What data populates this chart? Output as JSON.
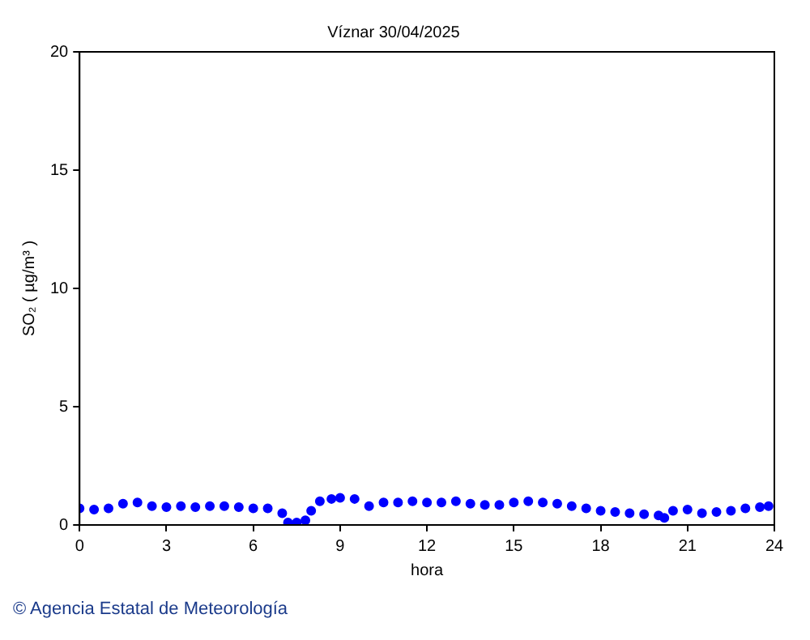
{
  "chart_data": {
    "type": "scatter",
    "title": "Víznar 30/04/2025",
    "xlabel": "hora",
    "ylabel": "SO₂ ( µg/m³ )",
    "x": [
      0,
      0.5,
      1,
      1.5,
      2,
      2.5,
      3,
      3.5,
      4,
      4.5,
      5,
      5.5,
      6,
      6.5,
      7,
      7.2,
      7.5,
      7.8,
      8,
      8.3,
      8.7,
      9,
      9.5,
      10,
      10.5,
      11,
      11.5,
      12,
      12.5,
      13,
      13.5,
      14,
      14.5,
      15,
      15.5,
      16,
      16.5,
      17,
      17.5,
      18,
      18.5,
      19,
      19.5,
      20,
      20.2,
      20.5,
      21,
      21.5,
      22,
      22.5,
      23,
      23.5,
      23.8
    ],
    "series": [
      {
        "color": "#0000ff",
        "values": [
          0.7,
          0.65,
          0.7,
          0.9,
          0.95,
          0.8,
          0.75,
          0.8,
          0.75,
          0.8,
          0.8,
          0.75,
          0.7,
          0.7,
          0.5,
          0.1,
          0.1,
          0.2,
          0.6,
          1.0,
          1.1,
          1.15,
          1.1,
          0.8,
          0.95,
          0.95,
          1.0,
          0.95,
          0.95,
          1.0,
          0.9,
          0.85,
          0.85,
          0.95,
          1.0,
          0.95,
          0.9,
          0.8,
          0.7,
          0.6,
          0.55,
          0.5,
          0.45,
          0.4,
          0.3,
          0.6,
          0.65,
          0.5,
          0.55,
          0.6,
          0.7,
          0.75,
          0.8
        ]
      }
    ],
    "xlim": [
      0,
      24
    ],
    "xticks": [
      0,
      3,
      6,
      9,
      12,
      15,
      18,
      21,
      24
    ],
    "ylim": [
      0,
      20
    ],
    "yticks": [
      0,
      5,
      10,
      15,
      20
    ],
    "grid": false,
    "legend": false,
    "marker": "circle",
    "annotations": [
      "© Agencia Estatal de Meteorología"
    ]
  }
}
